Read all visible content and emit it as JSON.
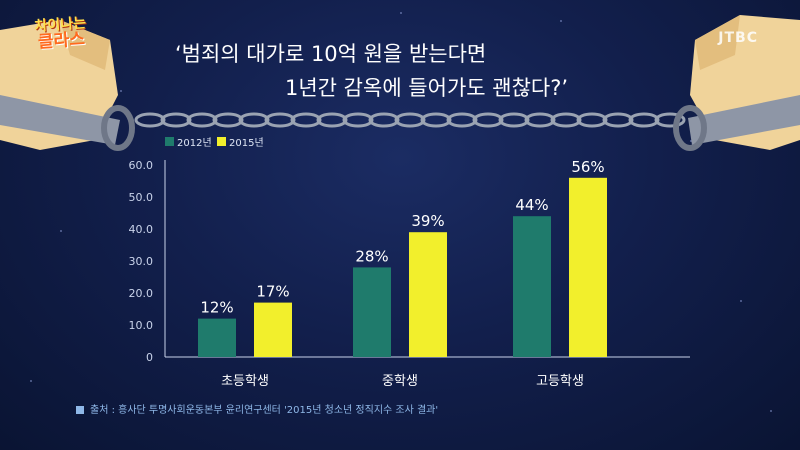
{
  "show_logo": {
    "line1": "차이나는",
    "line2": "클라스"
  },
  "channel_logo": "JTBC",
  "headline": {
    "line1": "‘범죄의 대가로 10억 원을 받는다면",
    "line2": "1년간 감옥에 들어가도 괜찮다?’"
  },
  "source": "출처 : 흥사단 투명사회운동본부 윤리연구센터 '2015년 청소년 정직지수 조사 결과'",
  "colors": {
    "series_2012": "#1f7b6c",
    "series_2015": "#f2ef2c",
    "background": "#121f4c"
  },
  "chart_data": {
    "type": "bar",
    "categories": [
      "초등학생",
      "중학생",
      "고등학생"
    ],
    "series": [
      {
        "name": "2012년",
        "values": [
          12,
          28,
          44
        ],
        "labels": [
          "12%",
          "28%",
          "44%"
        ]
      },
      {
        "name": "2015년",
        "values": [
          17,
          39,
          56
        ],
        "labels": [
          "17%",
          "39%",
          "56%"
        ]
      }
    ],
    "ylim": [
      0,
      60
    ],
    "yticks": [
      "0",
      "10.0",
      "20.0",
      "30.0",
      "40.0",
      "50.0",
      "60.0"
    ],
    "legend": "top-left",
    "grid": false
  }
}
